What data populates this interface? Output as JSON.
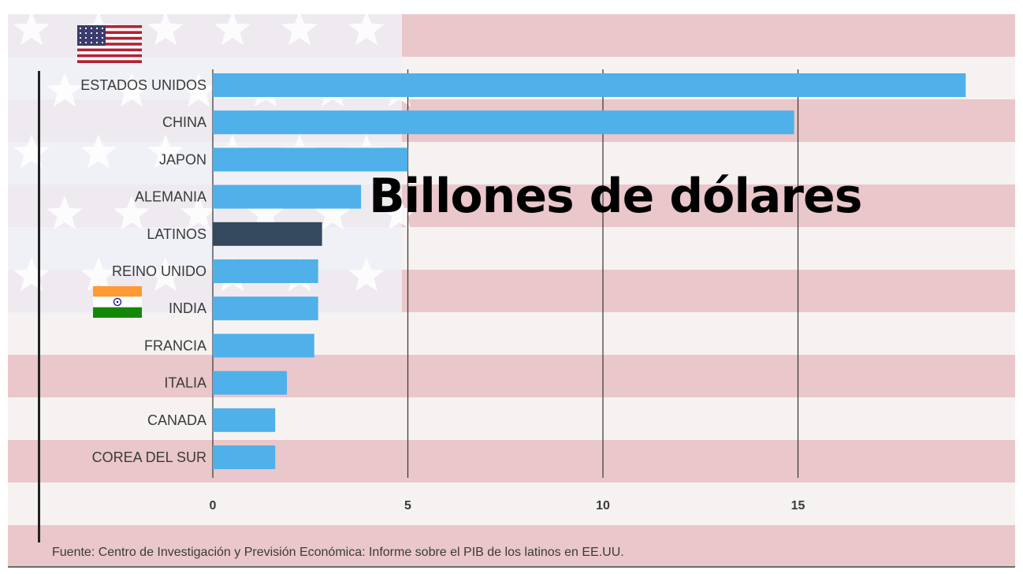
{
  "chart_data": {
    "type": "bar",
    "orientation": "horizontal",
    "title": "Billones de dólares",
    "categories": [
      "ESTADOS UNIDOS",
      "CHINA",
      "JAPON",
      "ALEMANIA",
      "LATINOS",
      "REINO UNIDO",
      "INDIA",
      "FRANCIA",
      "ITALIA",
      "CANADA",
      "COREA DEL SUR"
    ],
    "values": [
      19.3,
      14.9,
      5.0,
      3.8,
      2.8,
      2.7,
      2.7,
      2.6,
      1.9,
      1.6,
      1.6
    ],
    "highlight": "LATINOS",
    "x_ticks": [
      "0",
      "5",
      "10",
      "15"
    ],
    "xlim": [
      0,
      20
    ],
    "grid": "vertical",
    "bar_color": "#4fb0ea",
    "highlight_color": "#34495e",
    "source": "Fuente: Centro de Investigación y Previsión Económica: Informe sobre el PIB de los latinos en EE.UU."
  },
  "flags": {
    "usa": "usa-flag-icon",
    "india": "india-flag-icon"
  },
  "colors": {
    "flag_red": "#b22234",
    "flag_blue": "#3c3b6e",
    "india_saffron": "#ff9933",
    "india_green": "#138808"
  }
}
